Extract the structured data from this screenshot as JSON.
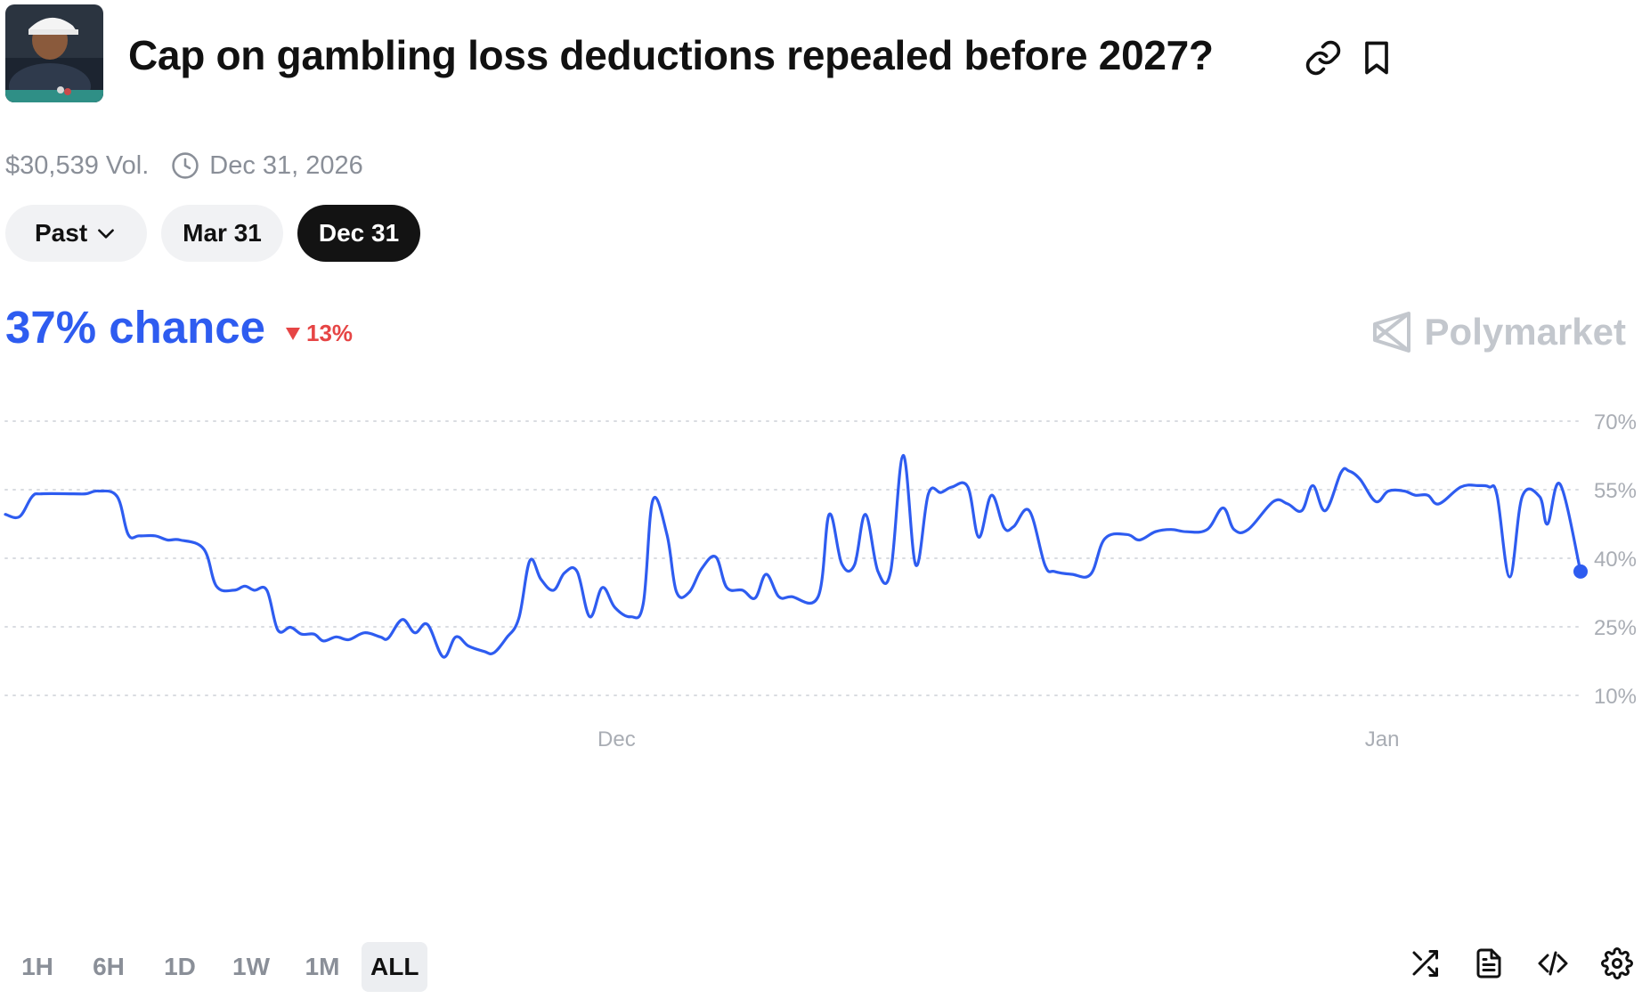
{
  "header": {
    "title": "Cap on gambling loss deductions repealed before 2027?",
    "thumbnail_icon": "market-photo",
    "link_icon": "link-icon",
    "bookmark_icon": "bookmark-icon"
  },
  "meta": {
    "volume": "$30,539 Vol.",
    "end_date": "Dec 31, 2026"
  },
  "date_pills": [
    {
      "label": "Past",
      "active": false
    },
    {
      "label": "Mar 31",
      "active": false
    },
    {
      "label": "Dec 31",
      "active": true
    }
  ],
  "chance": {
    "label": "37% chance",
    "change": "13%",
    "change_direction": "down"
  },
  "brand": {
    "name": "Polymarket"
  },
  "colors": {
    "accent": "#2e5cf0",
    "negative": "#e64545",
    "muted": "#8a8f98",
    "grid": "#d9dce1"
  },
  "ranges": [
    {
      "label": "1H",
      "active": false
    },
    {
      "label": "6H",
      "active": false
    },
    {
      "label": "1D",
      "active": false
    },
    {
      "label": "1W",
      "active": false
    },
    {
      "label": "1M",
      "active": false
    },
    {
      "label": "ALL",
      "active": true
    }
  ],
  "tools": [
    "shuffle-icon",
    "document-icon",
    "code-icon",
    "settings-icon"
  ],
  "chart_data": {
    "type": "line",
    "x_ticks": [
      {
        "label": "Dec",
        "x": 38.8
      },
      {
        "label": "Jan",
        "x": 87.4
      }
    ],
    "y_ticks": [
      "10%",
      "25%",
      "40%",
      "55%",
      "70%"
    ],
    "xlim": [
      0,
      100
    ],
    "ylim": [
      10,
      70
    ],
    "grid": true,
    "series": [
      {
        "values": [
          [
            0.0,
            49.6
          ],
          [
            0.9,
            49.1
          ],
          [
            1.7,
            53.5
          ],
          [
            2.3,
            54.1
          ],
          [
            4.3,
            54.1
          ],
          [
            5.1,
            54.1
          ],
          [
            5.9,
            54.7
          ],
          [
            7.1,
            53.5
          ],
          [
            7.8,
            45.2
          ],
          [
            8.5,
            44.9
          ],
          [
            9.5,
            44.9
          ],
          [
            10.3,
            44.0
          ],
          [
            11.1,
            44.0
          ],
          [
            12.6,
            42.0
          ],
          [
            13.4,
            33.9
          ],
          [
            14.5,
            33.0
          ],
          [
            15.2,
            33.9
          ],
          [
            15.8,
            33.0
          ],
          [
            16.6,
            33.0
          ],
          [
            17.3,
            24.3
          ],
          [
            18.1,
            24.9
          ],
          [
            18.8,
            23.4
          ],
          [
            19.6,
            23.4
          ],
          [
            20.2,
            21.9
          ],
          [
            21.0,
            22.8
          ],
          [
            21.8,
            22.2
          ],
          [
            22.8,
            23.7
          ],
          [
            23.8,
            22.8
          ],
          [
            24.3,
            22.5
          ],
          [
            25.2,
            26.6
          ],
          [
            26.0,
            23.7
          ],
          [
            26.8,
            25.5
          ],
          [
            27.8,
            18.4
          ],
          [
            28.6,
            22.8
          ],
          [
            29.4,
            20.8
          ],
          [
            30.4,
            19.6
          ],
          [
            31.0,
            19.3
          ],
          [
            31.8,
            22.5
          ],
          [
            32.6,
            26.9
          ],
          [
            33.3,
            39.5
          ],
          [
            34.0,
            35.4
          ],
          [
            34.8,
            33.0
          ],
          [
            35.5,
            36.8
          ],
          [
            36.3,
            37.1
          ],
          [
            37.1,
            27.2
          ],
          [
            37.9,
            33.6
          ],
          [
            38.7,
            29.2
          ],
          [
            39.7,
            27.2
          ],
          [
            40.5,
            30.1
          ],
          [
            41.1,
            52.7
          ],
          [
            42.0,
            45.2
          ],
          [
            42.6,
            32.7
          ],
          [
            43.4,
            32.5
          ],
          [
            44.2,
            37.7
          ],
          [
            45.1,
            40.3
          ],
          [
            45.8,
            33.6
          ],
          [
            46.8,
            33.0
          ],
          [
            47.6,
            31.3
          ],
          [
            48.3,
            36.5
          ],
          [
            49.1,
            31.6
          ],
          [
            49.9,
            31.6
          ],
          [
            51.6,
            31.6
          ],
          [
            52.3,
            49.6
          ],
          [
            53.1,
            38.8
          ],
          [
            53.9,
            38.5
          ],
          [
            54.6,
            49.6
          ],
          [
            55.4,
            37.1
          ],
          [
            56.2,
            37.1
          ],
          [
            57.0,
            62.5
          ],
          [
            57.8,
            38.5
          ],
          [
            58.6,
            54.1
          ],
          [
            59.4,
            54.4
          ],
          [
            60.1,
            55.6
          ],
          [
            61.1,
            55.6
          ],
          [
            61.8,
            44.6
          ],
          [
            62.6,
            53.8
          ],
          [
            63.4,
            46.7
          ],
          [
            64.0,
            46.9
          ],
          [
            65.0,
            50.4
          ],
          [
            66.0,
            38.5
          ],
          [
            66.6,
            37.1
          ],
          [
            67.7,
            36.5
          ],
          [
            68.9,
            36.5
          ],
          [
            69.8,
            44.3
          ],
          [
            71.2,
            45.2
          ],
          [
            72.0,
            44.0
          ],
          [
            73.0,
            45.8
          ],
          [
            74.0,
            46.3
          ],
          [
            75.0,
            45.8
          ],
          [
            76.3,
            46.3
          ],
          [
            77.3,
            51.0
          ],
          [
            78.0,
            46.3
          ],
          [
            78.9,
            46.3
          ],
          [
            80.5,
            52.4
          ],
          [
            81.4,
            51.9
          ],
          [
            82.3,
            50.4
          ],
          [
            83.0,
            55.9
          ],
          [
            83.8,
            50.4
          ],
          [
            84.8,
            58.8
          ],
          [
            85.3,
            59.1
          ],
          [
            86.0,
            57.3
          ],
          [
            87.0,
            52.4
          ],
          [
            87.8,
            54.7
          ],
          [
            88.8,
            54.7
          ],
          [
            89.5,
            53.8
          ],
          [
            90.3,
            53.8
          ],
          [
            91.0,
            51.9
          ],
          [
            92.4,
            55.6
          ],
          [
            93.5,
            55.9
          ],
          [
            94.2,
            55.6
          ],
          [
            94.7,
            53.8
          ],
          [
            95.5,
            35.9
          ],
          [
            96.3,
            53.5
          ],
          [
            97.4,
            53.5
          ],
          [
            97.9,
            47.5
          ],
          [
            98.7,
            56.2
          ],
          [
            100.0,
            37.1
          ]
        ]
      }
    ]
  }
}
